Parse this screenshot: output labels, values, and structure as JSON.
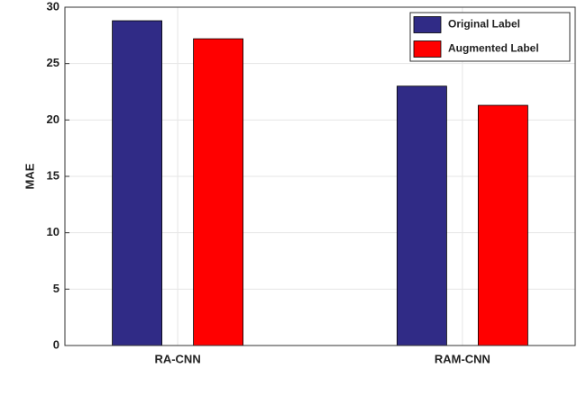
{
  "chart_data": {
    "type": "bar",
    "y_label": "MAE",
    "categories": [
      "RA-CNN",
      "RAM-CNN"
    ],
    "series": [
      {
        "name": "Original Label",
        "color": "#302b86",
        "values": [
          28.8,
          23.0
        ]
      },
      {
        "name": "Augmented Label",
        "color": "#ff0000",
        "values": [
          27.2,
          21.3
        ]
      }
    ],
    "ylim": [
      0,
      30
    ],
    "yticks": [
      0,
      5,
      10,
      15,
      20,
      25,
      30
    ],
    "grid": true,
    "legend": "upper right"
  }
}
